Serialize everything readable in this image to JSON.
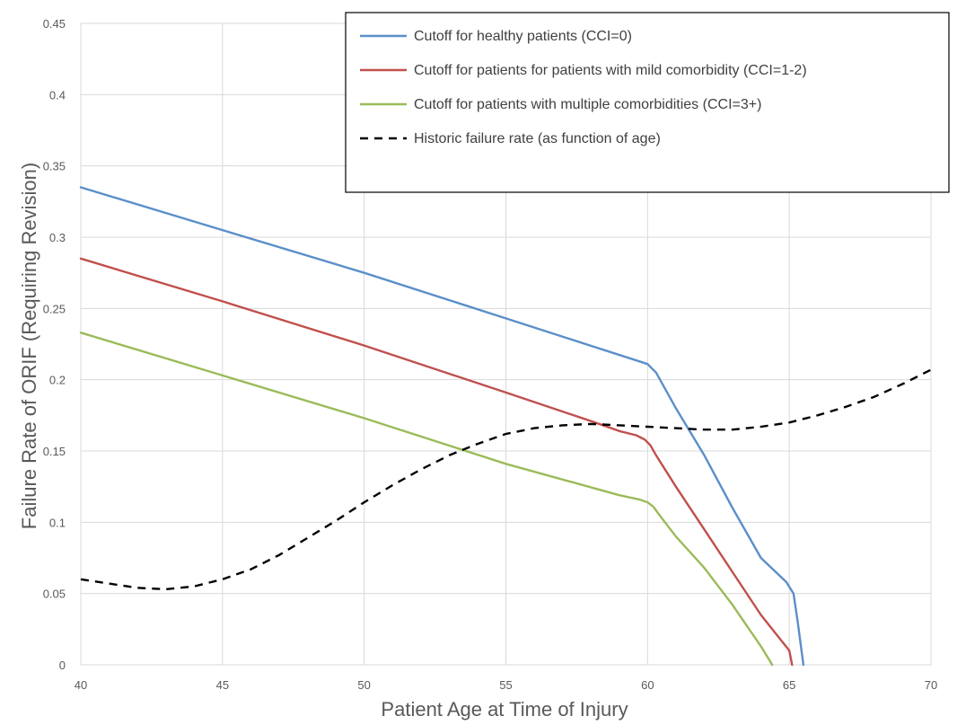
{
  "chart_data": {
    "type": "line",
    "xlabel": "Patient Age at Time of Injury",
    "ylabel": "Failure Rate of ORIF (Requiring Revision)",
    "xlim": [
      40,
      70
    ],
    "ylim": [
      0,
      0.45
    ],
    "x_ticks": [
      "40",
      "45",
      "50",
      "55",
      "60",
      "65",
      "70"
    ],
    "y_ticks": [
      "0",
      "0.05",
      "0.1",
      "0.15",
      "0.2",
      "0.25",
      "0.3",
      "0.35",
      "0.4",
      "0.45"
    ],
    "grid": true,
    "legend_position": "top-right",
    "series": [
      {
        "name": "Cutoff for healthy patients (CCI=0)",
        "color": "#5b8fc9",
        "dash": "solid",
        "x": [
          40,
          45,
          50,
          55,
          60,
          60.3,
          61,
          62,
          63,
          64,
          64.9,
          65.15,
          65.3,
          65.5
        ],
        "y": [
          0.335,
          0.305,
          0.275,
          0.243,
          0.211,
          0.205,
          0.18,
          0.147,
          0.11,
          0.075,
          0.058,
          0.05,
          0.03,
          0
        ]
      },
      {
        "name": "Cutoff for patients for patients with mild comorbidity (CCI=1-2)",
        "color": "#c0504d",
        "dash": "solid",
        "x": [
          40,
          45,
          50,
          55,
          58,
          59,
          59.6,
          59.9,
          60.1,
          60.3,
          61,
          62,
          63,
          64,
          64.8,
          65,
          65.1
        ],
        "y": [
          0.285,
          0.255,
          0.224,
          0.191,
          0.171,
          0.164,
          0.161,
          0.158,
          0.154,
          0.147,
          0.125,
          0.095,
          0.065,
          0.035,
          0.015,
          0.01,
          0
        ]
      },
      {
        "name": "Cutoff for patients with multiple comorbidities (CCI=3+)",
        "color": "#9bbb59",
        "dash": "solid",
        "x": [
          40,
          45,
          50,
          55,
          59,
          59.7,
          60,
          60.2,
          60.5,
          61,
          62,
          63,
          64,
          64.4
        ],
        "y": [
          0.233,
          0.203,
          0.173,
          0.141,
          0.119,
          0.116,
          0.114,
          0.111,
          0.103,
          0.09,
          0.068,
          0.042,
          0.013,
          0
        ]
      },
      {
        "name": "Historic failure rate (as function of age)",
        "color": "#000000",
        "dash": "dashed",
        "x": [
          40,
          41,
          42,
          43,
          44,
          45,
          46,
          47,
          48,
          49,
          50,
          51,
          52,
          53,
          54,
          55,
          56,
          57,
          58,
          59,
          60,
          61,
          62,
          63,
          64,
          65,
          66,
          67,
          68,
          69,
          70
        ],
        "y": [
          0.06,
          0.057,
          0.054,
          0.053,
          0.055,
          0.06,
          0.067,
          0.077,
          0.089,
          0.101,
          0.114,
          0.126,
          0.137,
          0.147,
          0.155,
          0.162,
          0.166,
          0.168,
          0.169,
          0.168,
          0.167,
          0.166,
          0.165,
          0.165,
          0.167,
          0.17,
          0.175,
          0.181,
          0.188,
          0.197,
          0.207
        ]
      }
    ]
  }
}
